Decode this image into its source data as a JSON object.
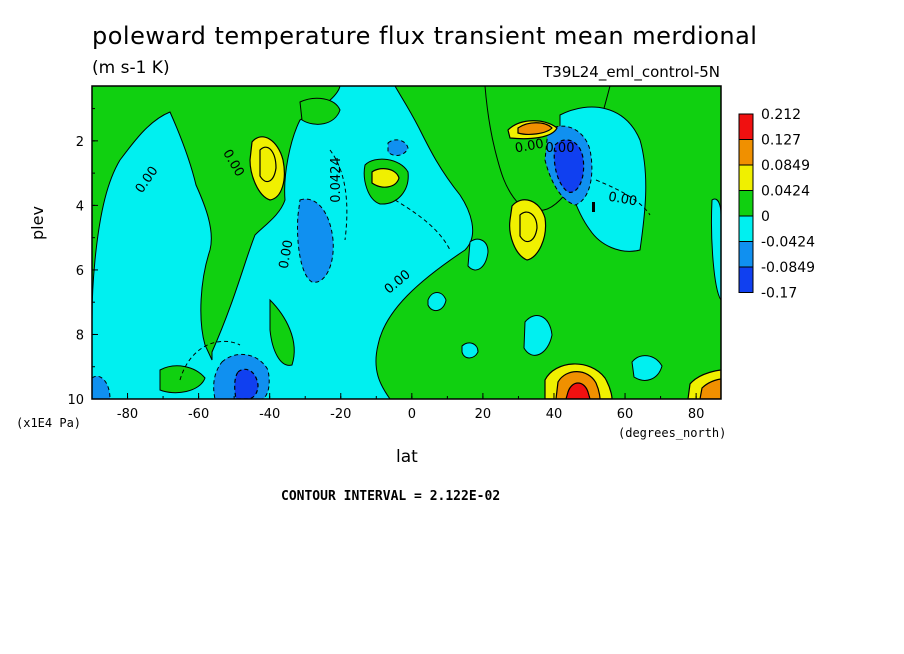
{
  "chart_data": {
    "type": "heatmap",
    "title": "poleward temperature flux transient mean merdional",
    "units": "(m s-1 K)",
    "run_label": "T39L24_eml_control-5N",
    "xlabel": "lat",
    "ylabel": "plev",
    "x_unit_label": "(degrees_north)",
    "y_unit_label": "(x1E4 Pa)",
    "xlim": [
      -90,
      87
    ],
    "ylim": [
      10,
      0.3
    ],
    "x_ticks": [
      "-80",
      "-60",
      "-40",
      "-20",
      "0",
      "20",
      "40",
      "60",
      "80"
    ],
    "y_ticks": [
      "2",
      "4",
      "6",
      "8",
      "10"
    ],
    "contour_interval_text": "CONTOUR INTERVAL = 2.122E-02",
    "colorbar": {
      "levels": [
        "0.212",
        "0.127",
        "0.0849",
        "0.0424",
        "0",
        "-0.0424",
        "-0.0849",
        "-0.17"
      ],
      "colors": [
        "#f01010",
        "#f09000",
        "#f0f000",
        "#10d010",
        "#00f0f0",
        "#1090f0",
        "#1040f0"
      ]
    },
    "contour_labels": [
      "0.00",
      "0.00",
      "0.00",
      "0.00",
      "0.0424",
      "0.00",
      "0.00",
      "0.00"
    ],
    "features": [
      {
        "lat": -48,
        "plev": 2.6,
        "value": 0.0849
      },
      {
        "lat": -8,
        "plev": 3.0,
        "value": 0.0849
      },
      {
        "lat": 35,
        "plev": 4.5,
        "value": 0.0849
      },
      {
        "lat": 37,
        "plev": 1.5,
        "value": 0.127
      },
      {
        "lat": 48,
        "plev": 9.8,
        "value": 0.212
      },
      {
        "lat": 85,
        "plev": 9.7,
        "value": 0.0849
      },
      {
        "lat": 46,
        "plev": 2.6,
        "value": -0.0849
      },
      {
        "lat": -25,
        "plev": 5.0,
        "value": -0.0424
      },
      {
        "lat": -45,
        "plev": 9.7,
        "value": -0.0849
      },
      {
        "lat": -88,
        "plev": 9.8,
        "value": -0.0849
      },
      {
        "lat": -3,
        "plev": 2.2,
        "value": -0.0424
      }
    ]
  }
}
